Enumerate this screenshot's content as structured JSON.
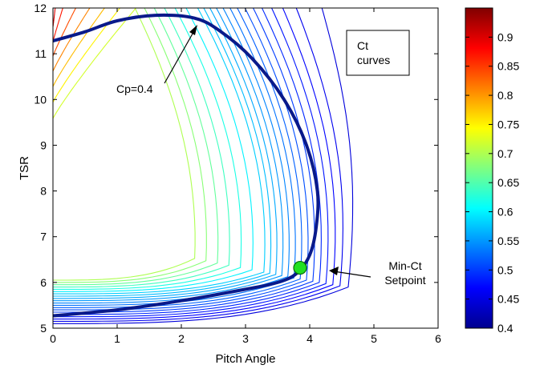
{
  "chart_data": {
    "type": "contour",
    "title": "",
    "xlabel": "Pitch Angle",
    "ylabel": "TSR",
    "xlim": [
      0,
      6
    ],
    "ylim": [
      5,
      12
    ],
    "xticks": [
      "0",
      "1",
      "2",
      "3",
      "4",
      "5",
      "6"
    ],
    "yticks": [
      "5",
      "6",
      "7",
      "8",
      "9",
      "10",
      "11",
      "12"
    ],
    "colorbar": {
      "range": [
        0.4,
        0.95
      ],
      "ticks": [
        "0.4",
        "0.45",
        "0.5",
        "0.55",
        "0.6",
        "0.65",
        "0.7",
        "0.75",
        "0.8",
        "0.85",
        "0.9"
      ]
    },
    "contour_levels": [
      0.45,
      0.46,
      0.47,
      0.48,
      0.49,
      0.5,
      0.51,
      0.52,
      0.53,
      0.54,
      0.55,
      0.56,
      0.57,
      0.58,
      0.6,
      0.62,
      0.64,
      0.66,
      0.68,
      0.7,
      0.72,
      0.75,
      0.78,
      0.81,
      0.84,
      0.87,
      0.9,
      0.93
    ],
    "cp_curve": {
      "label": "Cp=0.4",
      "points": [
        [
          0,
          5.27
        ],
        [
          1,
          5.4
        ],
        [
          2,
          5.6
        ],
        [
          3,
          5.85
        ],
        [
          3.5,
          6.0
        ],
        [
          3.8,
          6.2
        ],
        [
          4.0,
          6.6
        ],
        [
          4.1,
          7.2
        ],
        [
          4.12,
          8.0
        ],
        [
          3.95,
          9.0
        ],
        [
          3.6,
          10.0
        ],
        [
          3.1,
          10.9
        ],
        [
          2.6,
          11.5
        ],
        [
          2.2,
          11.78
        ],
        [
          1.6,
          11.84
        ],
        [
          1.0,
          11.72
        ],
        [
          0.5,
          11.48
        ],
        [
          0,
          11.28
        ]
      ]
    },
    "setpoint": {
      "label": "Min-Ct Setpoint",
      "x": 3.85,
      "y": 6.32
    },
    "box_label": "Ct curves"
  }
}
